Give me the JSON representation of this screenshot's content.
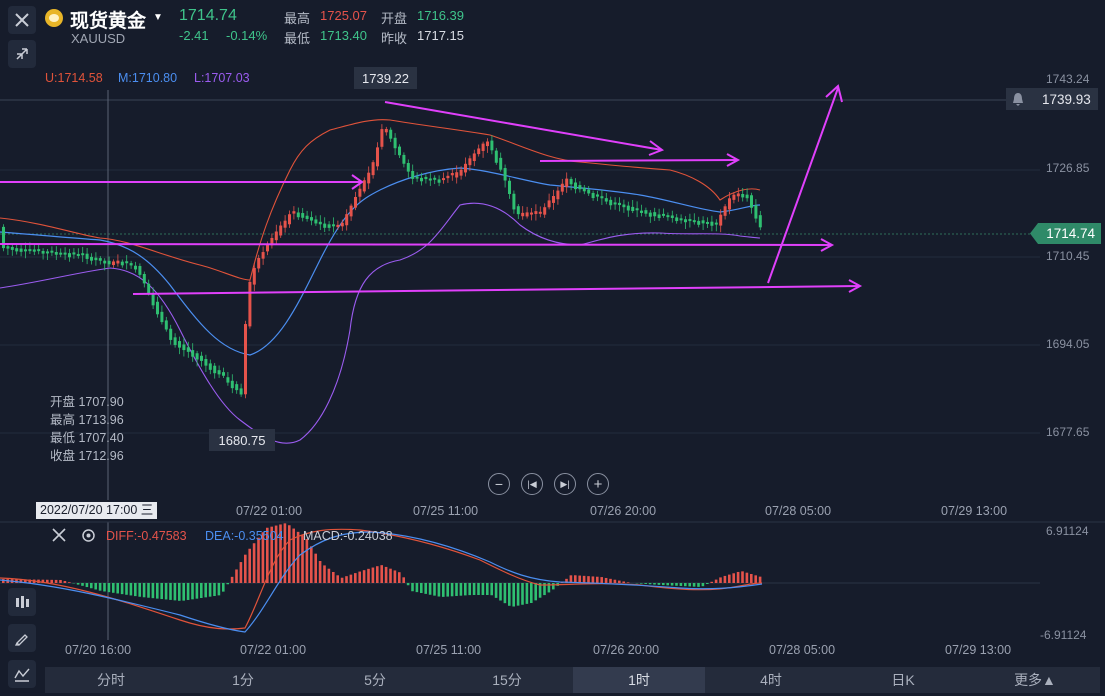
{
  "header": {
    "title": "现货黄金",
    "symbol": "XAUUSD",
    "last_price": "1714.74",
    "change": "-2.41",
    "change_pct": "-0.14%",
    "high_label": "最高",
    "high": "1725.07",
    "open_label": "开盘",
    "open": "1716.39",
    "low_label": "最低",
    "low": "1713.40",
    "prev_close_label": "昨收",
    "prev_close": "1717.15"
  },
  "indicators": {
    "upper": "U:1714.58",
    "middle": "M:1710.80",
    "lower": "L:1707.03"
  },
  "annotations": {
    "peak": "1739.22",
    "trough": "1680.75"
  },
  "price_axis": {
    "ticks": [
      "1743.24",
      "1726.85",
      "1710.45",
      "1694.05",
      "1677.65"
    ],
    "alert_price": "1739.93",
    "current_price": "1714.74"
  },
  "ohlc_panel": {
    "open": "开盘 1707.90",
    "high": "最高 1713.96",
    "low": "最低 1707.40",
    "close": "收盘 1712.96"
  },
  "time_axis": {
    "crosshair": "2022/07/20 17:00 三",
    "labels": [
      "07/22 01:00",
      "07/25 11:00",
      "07/26 20:00",
      "07/28 05:00",
      "07/29 13:00"
    ]
  },
  "macd": {
    "diff": "DIFF:-0.47583",
    "dea": "DEA:-0.35504",
    "macd": "MACD:-0.24038",
    "max": "6.91124",
    "min": "-6.91124"
  },
  "macd_time_axis": {
    "labels": [
      "07/20 16:00",
      "07/22 01:00",
      "07/25 11:00",
      "07/26 20:00",
      "07/28 05:00",
      "07/29 13:00"
    ]
  },
  "tabs": [
    {
      "label": "分时"
    },
    {
      "label": "1分"
    },
    {
      "label": "5分"
    },
    {
      "label": "15分"
    },
    {
      "label": "1时"
    },
    {
      "label": "4时"
    },
    {
      "label": "日K"
    },
    {
      "label": "更多▲"
    }
  ],
  "active_tab": "1时",
  "colors": {
    "up": "#e5534b",
    "down": "#2fbf71",
    "accent_line": "#e040fb",
    "upper_band": "#e0533a",
    "middle_band": "#4b8ef0",
    "lower_band": "#9b5cf0"
  }
}
